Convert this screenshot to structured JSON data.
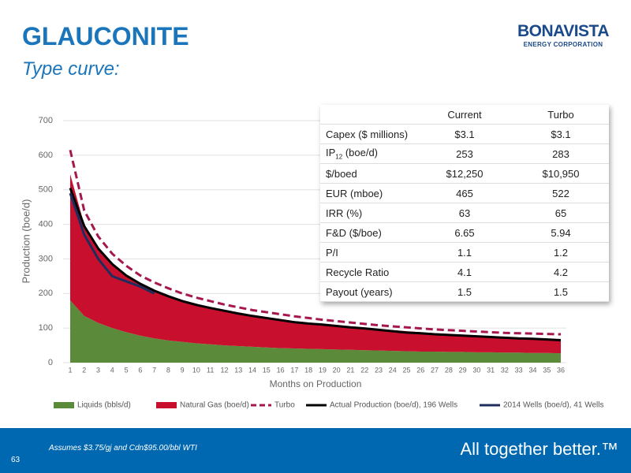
{
  "header": {
    "title": "GLAUCONITE",
    "subtitle": "Type curve:",
    "logo_main": "BONAVISTA",
    "logo_sub": "ENERGY CORPORATION"
  },
  "chart_data": {
    "type": "line",
    "y_label": "Production (boe/d)",
    "x_label": "Months on Production",
    "x": [
      1,
      2,
      3,
      4,
      5,
      6,
      7,
      8,
      9,
      10,
      11,
      12,
      13,
      14,
      15,
      16,
      17,
      18,
      19,
      20,
      21,
      22,
      23,
      24,
      25,
      26,
      27,
      28,
      29,
      30,
      31,
      32,
      33,
      34,
      35,
      36
    ],
    "xlim": [
      1,
      36
    ],
    "ylim": [
      0,
      700
    ],
    "yticks": [
      0,
      100,
      200,
      300,
      400,
      500,
      600,
      700
    ],
    "grid": true,
    "legend": "bottom",
    "series": [
      {
        "name": "Liquids (bbls/d)",
        "color": "#5a8a3a",
        "kind": "area",
        "stacked": true,
        "values": [
          180,
          135,
          115,
          100,
          88,
          78,
          70,
          64,
          60,
          56,
          53,
          50,
          48,
          46,
          44,
          42,
          41,
          40,
          39,
          38,
          37,
          36,
          35,
          34,
          33,
          32,
          32,
          31,
          31,
          30,
          30,
          29,
          29,
          28,
          28,
          27
        ]
      },
      {
        "name": "Natural Gas (boe/d)",
        "color": "#c8102e",
        "kind": "area",
        "stacked": true,
        "values": [
          365,
          265,
          215,
          185,
          167,
          152,
          140,
          131,
          120,
          114,
          107,
          102,
          97,
          92,
          88,
          84,
          79,
          76,
          73,
          70,
          67,
          64,
          62,
          60,
          58,
          56,
          53,
          52,
          50,
          48,
          46,
          45,
          43,
          42,
          40,
          39
        ]
      },
      {
        "name": "Turbo",
        "color": "#a5174d",
        "kind": "line",
        "dash": true,
        "values": [
          615,
          440,
          365,
          315,
          280,
          252,
          232,
          215,
          200,
          188,
          178,
          168,
          160,
          152,
          146,
          140,
          134,
          129,
          124,
          120,
          116,
          112,
          108,
          105,
          102,
          99,
          96,
          94,
          92,
          90,
          88,
          86,
          85,
          84,
          83,
          82
        ]
      },
      {
        "name": "Actual Production (boe/d), 196 Wells",
        "color": "#000000",
        "kind": "line",
        "values": [
          505,
          395,
          330,
          285,
          252,
          228,
          208,
          192,
          178,
          167,
          158,
          150,
          142,
          135,
          129,
          123,
          117,
          113,
          110,
          106,
          102,
          99,
          95,
          91,
          87,
          85,
          82,
          80,
          78,
          76,
          74,
          72,
          70,
          69,
          67,
          65
        ]
      },
      {
        "name": "2014 Wells (boe/d), 41 Wells",
        "color": "#1f2d5c",
        "kind": "line",
        "values": [
          490,
          370,
          300,
          250,
          235,
          220,
          200,
          null,
          null,
          null,
          null,
          null,
          null,
          null,
          null,
          null,
          null,
          null,
          null,
          null,
          null,
          null,
          null,
          null,
          null,
          null,
          null,
          null,
          null,
          null,
          null,
          null,
          null,
          null,
          null,
          null
        ]
      }
    ]
  },
  "table": {
    "columns": [
      "Current",
      "Turbo"
    ],
    "rows": [
      {
        "label": "Capex ($ millions)",
        "cells": [
          "$3.1",
          "$3.1"
        ]
      },
      {
        "label": {
          "pre": "IP",
          "sub": "12",
          "post": " (boe/d)"
        },
        "cells": [
          "253",
          "283"
        ]
      },
      {
        "label": "$/boed",
        "cells": [
          "$12,250",
          "$10,950"
        ]
      },
      {
        "label": "EUR (mboe)",
        "cells": [
          "465",
          "522"
        ]
      },
      {
        "label": "IRR (%)",
        "cells": [
          "63",
          "65"
        ]
      },
      {
        "label": "F&D ($/boe)",
        "cells": [
          "6.65",
          "5.94"
        ]
      },
      {
        "label": "P/I",
        "cells": [
          "1.1",
          "1.2"
        ]
      },
      {
        "label": "Recycle Ratio",
        "cells": [
          "4.1",
          "4.2"
        ]
      },
      {
        "label": "Payout (years)",
        "cells": [
          "1.5",
          "1.5"
        ]
      }
    ]
  },
  "footer": {
    "note": "Assumes $3.75/gj and Cdn$95.00/bbl WTI",
    "page": "63",
    "slogan": "All together better.™"
  }
}
